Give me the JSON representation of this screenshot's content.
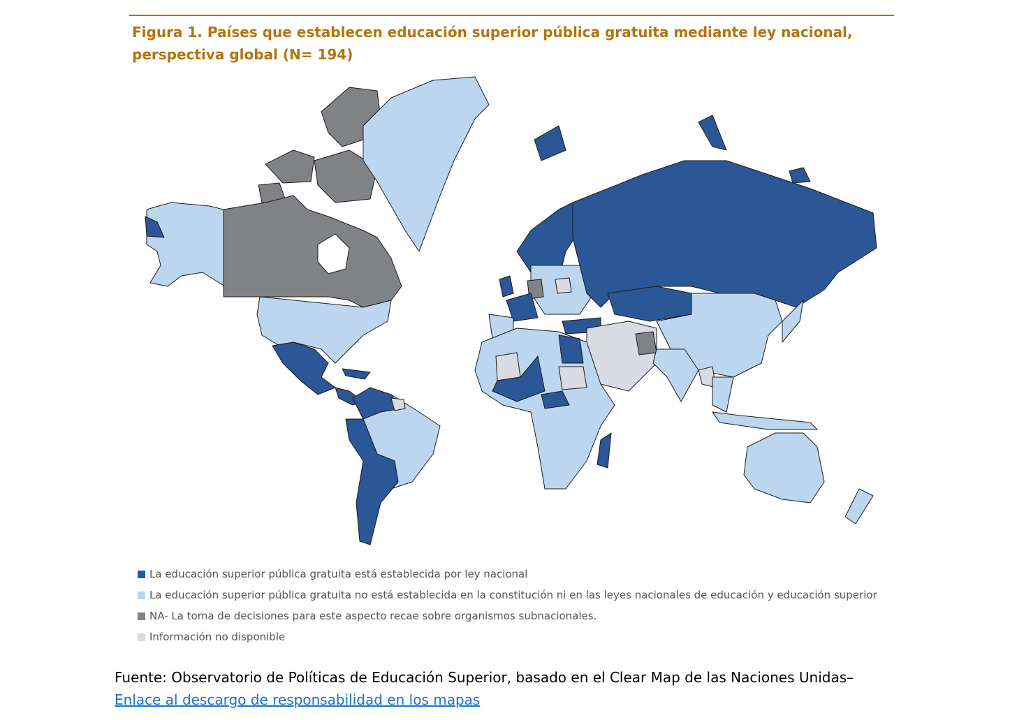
{
  "figure": {
    "title_lines": [
      "Figura 1. Países que establecen educación superior pública gratuita mediante ley nacional,",
      "perspectiva global (N= 194)"
    ],
    "title_color": "#b5730b",
    "legend": [
      {
        "label": "La educación superior pública gratuita está establecida por ley nacional",
        "color": "#2b5797"
      },
      {
        "label": "La educación superior pública gratuita no está establecida en la constitución ni en las leyes nacionales de educación y educación superior",
        "color": "#bcd6f0"
      },
      {
        "label": "NA- La toma de decisiones para este aspecto recae sobre organismos subnacionales.",
        "color": "#808285"
      },
      {
        "label": "Información no disponible",
        "color": "#d8dce2"
      }
    ],
    "source": "Fuente: Observatorio de Políticas de Educación Superior, basado en el Clear Map de las Naciones Unidas–",
    "link": "Enlace al descargo de responsabilidad en los mapas"
  }
}
